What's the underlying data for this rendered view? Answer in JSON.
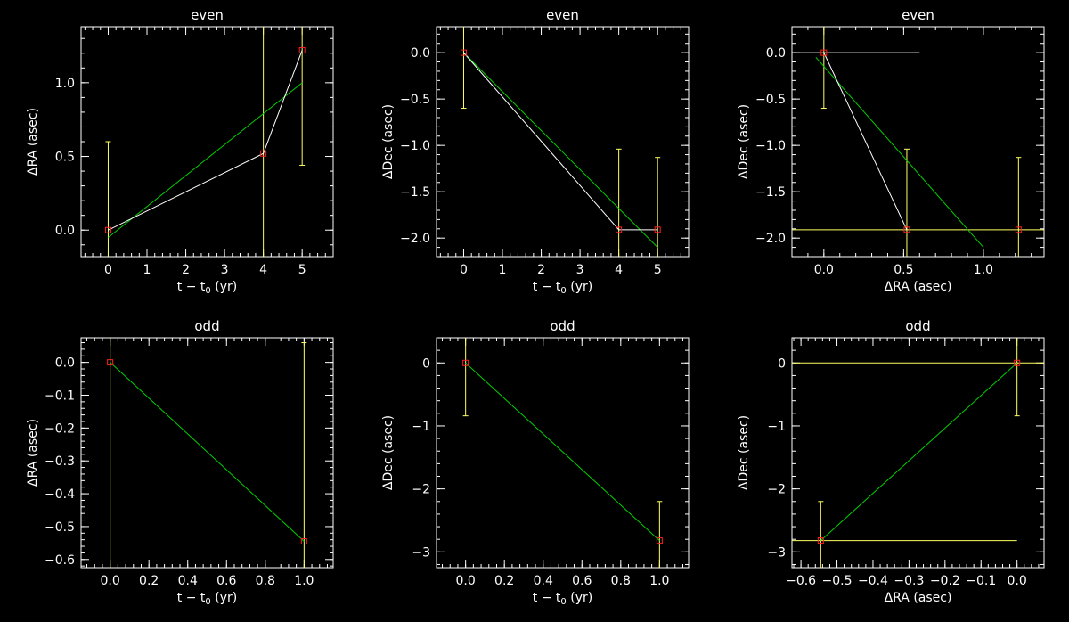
{
  "colors": {
    "background": "#000000",
    "axes": "#ffffff",
    "data_line": "#ffffff",
    "fit_line": "#00d000",
    "error_bar": "#ffff60",
    "marker": "#ff2020"
  },
  "chart_data": [
    {
      "type": "line",
      "title": "even",
      "xlabel": "t − t",
      "xlabel_sub": "0",
      "xlabel_unit": " (yr)",
      "ylabel": "ΔRA (asec)",
      "xlim": [
        -0.7,
        5.8
      ],
      "ylim": [
        -0.18,
        1.38
      ],
      "xticks": [
        0,
        1,
        2,
        3,
        4,
        5
      ],
      "xtick_labels": [
        "0",
        "1",
        "2",
        "3",
        "4",
        "5"
      ],
      "yticks": [
        0.0,
        0.5,
        1.0
      ],
      "ytick_labels": [
        "0.0",
        "0.5",
        "1.0"
      ],
      "x_minor": 0.2,
      "y_minor": 0.1,
      "points": {
        "x": [
          0,
          4,
          5
        ],
        "y": [
          0.0,
          0.52,
          1.22
        ]
      },
      "connect_points": true,
      "y_errors": [
        [
          -0.6,
          0.6
        ],
        [
          -0.7,
          1.75
        ],
        [
          0.44,
          1.72
        ]
      ],
      "x_errors": [],
      "fit_line": {
        "x": [
          0,
          5
        ],
        "y": [
          -0.05,
          1.0
        ]
      }
    },
    {
      "type": "line",
      "title": "even",
      "xlabel": "t − t",
      "xlabel_sub": "0",
      "xlabel_unit": " (yr)",
      "ylabel": "ΔDec (asec)",
      "xlim": [
        -0.7,
        5.8
      ],
      "ylim": [
        -2.2,
        0.28
      ],
      "xticks": [
        0,
        1,
        2,
        3,
        4,
        5
      ],
      "xtick_labels": [
        "0",
        "1",
        "2",
        "3",
        "4",
        "5"
      ],
      "yticks": [
        0.0,
        -0.5,
        -1.0,
        -1.5,
        -2.0
      ],
      "ytick_labels": [
        "0.0",
        "−0.5",
        "−1.0",
        "−1.5",
        "−2.0"
      ],
      "x_minor": 0.2,
      "y_minor": 0.1,
      "points": {
        "x": [
          0,
          4,
          5
        ],
        "y": [
          0.0,
          -1.91,
          -1.91
        ]
      },
      "connect_points": true,
      "y_errors": [
        [
          -0.6,
          0.6
        ],
        [
          -2.5,
          -1.04
        ],
        [
          -2.5,
          -1.13
        ]
      ],
      "x_errors": [],
      "fit_line": {
        "x": [
          0,
          5
        ],
        "y": [
          0.0,
          -2.1
        ]
      }
    },
    {
      "type": "line",
      "title": "even",
      "xlabel": "ΔRA (asec)",
      "xlabel_sub": "",
      "xlabel_unit": "",
      "ylabel": "ΔDec (asec)",
      "xlim": [
        -0.2,
        1.38
      ],
      "ylim": [
        -2.2,
        0.28
      ],
      "xticks": [
        0.0,
        0.5,
        1.0
      ],
      "xtick_labels": [
        "0.0",
        "0.5",
        "1.0"
      ],
      "yticks": [
        0.0,
        -0.5,
        -1.0,
        -1.5,
        -2.0
      ],
      "ytick_labels": [
        "0.0",
        "−0.5",
        "−1.0",
        "−1.5",
        "−2.0"
      ],
      "x_minor": 0.1,
      "y_minor": 0.1,
      "points": {
        "x": [
          0.0,
          0.52,
          1.22
        ],
        "y": [
          0.0,
          -1.91,
          -1.91
        ]
      },
      "connect_points": false,
      "data_path": {
        "x": [
          0.0,
          0.52
        ],
        "y": [
          0.0,
          -1.91
        ]
      },
      "y_errors": [
        [
          0.0,
          -0.6,
          0.6
        ],
        [
          0.52,
          -2.5,
          -1.04
        ],
        [
          1.22,
          -2.5,
          -1.13
        ]
      ],
      "x_errors": [],
      "white_hlines": [
        {
          "y": 0.0,
          "x": [
            -0.6,
            0.6
          ]
        }
      ],
      "yellow_hlines": [
        {
          "y": -1.91,
          "x": [
            -0.2,
            1.38
          ]
        }
      ],
      "fit_line": {
        "x": [
          -0.05,
          1.0
        ],
        "y": [
          -0.05,
          -2.1
        ]
      }
    },
    {
      "type": "line",
      "title": "odd",
      "xlabel": "t − t",
      "xlabel_sub": "0",
      "xlabel_unit": " (yr)",
      "ylabel": "ΔRA (asec)",
      "xlim": [
        -0.15,
        1.15
      ],
      "ylim": [
        -0.625,
        0.075
      ],
      "xticks": [
        0.0,
        0.2,
        0.4,
        0.6,
        0.8,
        1.0
      ],
      "xtick_labels": [
        "0.0",
        "0.2",
        "0.4",
        "0.6",
        "0.8",
        "1.0"
      ],
      "yticks": [
        0.0,
        -0.1,
        -0.2,
        -0.3,
        -0.4,
        -0.5,
        -0.6
      ],
      "ytick_labels": [
        "0.0",
        "−0.1",
        "−0.2",
        "−0.3",
        "−0.4",
        "−0.5",
        "−0.6"
      ],
      "x_minor": 0.04,
      "y_minor": 0.02,
      "points": {
        "x": [
          0.0,
          1.0
        ],
        "y": [
          0.0,
          -0.545
        ]
      },
      "connect_points": false,
      "y_errors": [
        [
          -0.7,
          0.2
        ],
        [
          -0.7,
          0.06
        ]
      ],
      "x_errors": [],
      "fit_line": {
        "x": [
          0.0,
          1.0
        ],
        "y": [
          0.0,
          -0.545
        ]
      }
    },
    {
      "type": "line",
      "title": "odd",
      "xlabel": "t − t",
      "xlabel_sub": "0",
      "xlabel_unit": " (yr)",
      "ylabel": "ΔDec (asec)",
      "xlim": [
        -0.15,
        1.15
      ],
      "ylim": [
        -3.25,
        0.4
      ],
      "xticks": [
        0.0,
        0.2,
        0.4,
        0.6,
        0.8,
        1.0
      ],
      "xtick_labels": [
        "0.0",
        "0.2",
        "0.4",
        "0.6",
        "0.8",
        "1.0"
      ],
      "yticks": [
        0,
        -1,
        -2,
        -3
      ],
      "ytick_labels": [
        "0",
        "−1",
        "−2",
        "−3"
      ],
      "x_minor": 0.04,
      "y_minor": 0.2,
      "points": {
        "x": [
          0.0,
          1.0
        ],
        "y": [
          0.0,
          -2.82
        ]
      },
      "connect_points": false,
      "y_errors": [
        [
          -0.84,
          0.84
        ],
        [
          -3.5,
          -2.2
        ]
      ],
      "x_errors": [],
      "fit_line": {
        "x": [
          0.0,
          1.0
        ],
        "y": [
          0.0,
          -2.82
        ]
      }
    },
    {
      "type": "line",
      "title": "odd",
      "xlabel": "ΔRA (asec)",
      "xlabel_sub": "",
      "xlabel_unit": "",
      "ylabel": "ΔDec (asec)",
      "xlim": [
        -0.625,
        0.075
      ],
      "ylim": [
        -3.25,
        0.4
      ],
      "xticks": [
        -0.6,
        -0.5,
        -0.4,
        -0.3,
        -0.2,
        -0.1,
        0.0
      ],
      "xtick_labels": [
        "−0.6",
        "−0.5",
        "−0.4",
        "−0.3",
        "−0.2",
        "−0.1",
        "0.0"
      ],
      "yticks": [
        0,
        -1,
        -2,
        -3
      ],
      "ytick_labels": [
        "0",
        "−1",
        "−2",
        "−3"
      ],
      "x_minor": 0.02,
      "y_minor": 0.2,
      "points": {
        "x": [
          -0.545,
          0.0
        ],
        "y": [
          -2.82,
          0.0
        ]
      },
      "connect_points": false,
      "y_errors": [
        [
          -0.545,
          -3.5,
          -2.2
        ],
        [
          0.0,
          -0.84,
          0.84
        ]
      ],
      "x_errors": [],
      "yellow_hlines": [
        {
          "y": 0.0,
          "x": [
            -0.625,
            0.075
          ]
        },
        {
          "y": -2.82,
          "x": [
            -0.625,
            0.0
          ]
        }
      ],
      "fit_line": {
        "x": [
          -0.545,
          0.0
        ],
        "y": [
          -2.82,
          0.0
        ]
      }
    }
  ]
}
